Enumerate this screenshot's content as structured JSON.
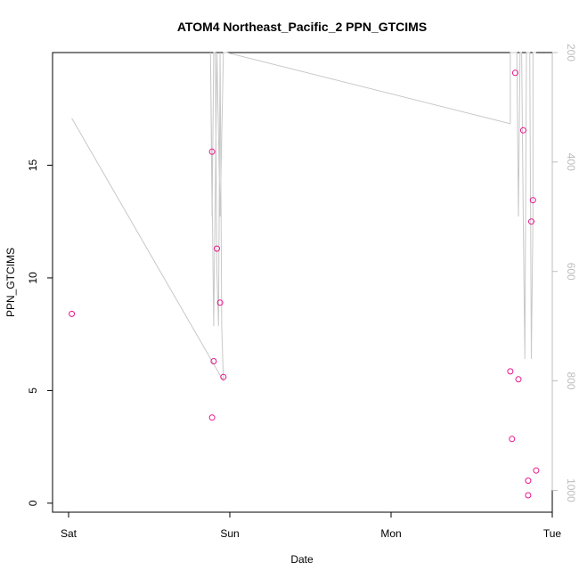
{
  "chart_data": {
    "type": "scatter",
    "title": "ATOM4 Northeast_Pacific_2 PPN_GTCIMS",
    "xlabel": "Date",
    "ylabel": "PPN_GTCIMS",
    "x_ticks": [
      "Sat",
      "Sun",
      "Mon",
      "Tue"
    ],
    "y_ticks": [
      "0",
      "5",
      "10",
      "15"
    ],
    "right_ticks": [
      "200",
      "400",
      "600",
      "800",
      "1000"
    ],
    "xlim_days": [
      -0.02,
      3.0
    ],
    "ylim": [
      -0.4,
      20.0
    ],
    "right_axis": {
      "ylim_reversed": [
        1040,
        200
      ]
    },
    "grid": false,
    "colors": {
      "points": "#e8158a",
      "line": "#c8c8c8",
      "right_axis": "#bdbdbd"
    },
    "series": [
      {
        "marker": "open-circle",
        "x": [
          0.02,
          0.89,
          0.89,
          0.9,
          0.92,
          0.94,
          0.96,
          2.74,
          2.75,
          2.77,
          2.79,
          2.82,
          2.85,
          2.85,
          2.87,
          2.88,
          2.9
        ],
        "y": [
          8.4,
          15.6,
          3.8,
          6.3,
          11.3,
          8.9,
          5.6,
          5.85,
          2.85,
          19.1,
          5.5,
          16.55,
          1.0,
          0.35,
          12.5,
          13.45,
          1.45
        ]
      },
      {
        "marker": "none",
        "axis": "right",
        "x": [
          0.02,
          0.96,
          0.95,
          0.94,
          0.93,
          0.92,
          0.91,
          0.9,
          0.89,
          0.88,
          0.9,
          0.92,
          0.94,
          0.96,
          0.98,
          2.74,
          2.74,
          2.76,
          2.78,
          2.79,
          2.8,
          2.81,
          2.82,
          2.83,
          2.84,
          2.86,
          2.87,
          2.88,
          2.88,
          2.89,
          2.9
        ],
        "y": [
          320,
          800,
          700,
          180,
          700,
          600,
          180,
          130,
          500,
          180,
          700,
          180,
          500,
          180,
          180,
          330,
          180,
          100,
          180,
          500,
          180,
          180,
          500,
          760,
          180,
          180,
          760,
          500,
          180,
          180,
          180
        ]
      }
    ]
  }
}
